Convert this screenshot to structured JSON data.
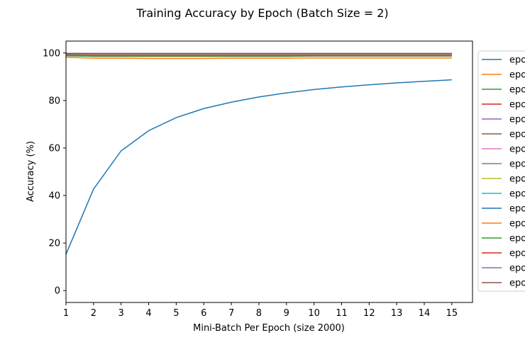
{
  "chart_data": {
    "type": "line",
    "title": "Training Accuracy by Epoch (Batch Size = 2)",
    "xlabel": "Mini-Batch Per Epoch (size 2000)",
    "ylabel": "Accuracy (%)",
    "xlim": [
      1,
      15.75
    ],
    "ylim": [
      -5,
      105
    ],
    "xticks": [
      1,
      2,
      3,
      4,
      5,
      6,
      7,
      8,
      9,
      10,
      11,
      12,
      13,
      14,
      15
    ],
    "yticks": [
      0,
      20,
      40,
      60,
      80,
      100
    ],
    "grid": false,
    "legend_position": "outside-right",
    "x": [
      1,
      2,
      3,
      4,
      5,
      6,
      7,
      8,
      9,
      10,
      11,
      12,
      13,
      14,
      15
    ],
    "series": [
      {
        "name": "epo",
        "color": "#1f77b4",
        "values": [
          15.3,
          42.7,
          58.8,
          67.3,
          72.8,
          76.6,
          79.3,
          81.5,
          83.2,
          84.6,
          85.7,
          86.6,
          87.4,
          88.1,
          88.7
        ]
      },
      {
        "name": "epo",
        "color": "#ff7f0e",
        "values": [
          98.2,
          97.8,
          97.8,
          97.7,
          97.7,
          97.7,
          97.8,
          97.8,
          97.8,
          97.9,
          97.9,
          97.9,
          97.9,
          97.9,
          97.9
        ]
      },
      {
        "name": "epo",
        "color": "#2ca02c",
        "values": [
          98.8,
          98.6,
          98.6,
          98.6,
          98.6,
          98.6,
          98.6,
          98.6,
          98.6,
          98.7,
          98.7,
          98.7,
          98.7,
          98.7,
          98.7
        ]
      },
      {
        "name": "epo",
        "color": "#d62728",
        "values": [
          99.0,
          98.9,
          98.9,
          98.9,
          98.9,
          98.9,
          98.9,
          98.9,
          98.9,
          98.9,
          98.9,
          98.9,
          98.9,
          98.9,
          98.9
        ]
      },
      {
        "name": "epo",
        "color": "#9467bd",
        "values": [
          99.2,
          99.1,
          99.1,
          99.1,
          99.1,
          99.1,
          99.1,
          99.1,
          99.1,
          99.1,
          99.1,
          99.1,
          99.1,
          99.1,
          99.1
        ]
      },
      {
        "name": "epo",
        "color": "#8c564b",
        "values": [
          99.3,
          99.2,
          99.2,
          99.2,
          99.2,
          99.2,
          99.2,
          99.2,
          99.2,
          99.2,
          99.2,
          99.2,
          99.2,
          99.2,
          99.2
        ]
      },
      {
        "name": "epo",
        "color": "#e377c2",
        "values": [
          99.4,
          99.3,
          99.3,
          99.3,
          99.3,
          99.3,
          99.3,
          99.3,
          99.3,
          99.3,
          99.3,
          99.3,
          99.3,
          99.3,
          99.3
        ]
      },
      {
        "name": "epo",
        "color": "#7f7f7f",
        "values": [
          99.5,
          99.4,
          99.4,
          99.4,
          99.4,
          99.4,
          99.4,
          99.4,
          99.4,
          99.4,
          99.4,
          99.4,
          99.4,
          99.4,
          99.4
        ]
      },
      {
        "name": "epo",
        "color": "#bcbd22",
        "values": [
          99.5,
          99.5,
          99.5,
          99.5,
          99.5,
          99.5,
          99.5,
          99.5,
          99.5,
          99.5,
          99.5,
          99.5,
          99.5,
          99.5,
          99.5
        ]
      },
      {
        "name": "epo",
        "color": "#17becf",
        "values": [
          99.6,
          99.5,
          99.5,
          99.5,
          99.5,
          99.5,
          99.5,
          99.5,
          99.5,
          99.5,
          99.5,
          99.5,
          99.5,
          99.5,
          99.5
        ]
      },
      {
        "name": "epo",
        "color": "#1f77b4",
        "values": [
          99.6,
          99.6,
          99.6,
          99.6,
          99.6,
          99.6,
          99.6,
          99.6,
          99.6,
          99.6,
          99.6,
          99.6,
          99.6,
          99.6,
          99.6
        ]
      },
      {
        "name": "epo",
        "color": "#ff7f0e",
        "values": [
          99.7,
          99.6,
          99.6,
          99.6,
          99.6,
          99.6,
          99.6,
          99.6,
          99.6,
          99.6,
          99.6,
          99.6,
          99.6,
          99.6,
          99.6
        ]
      },
      {
        "name": "epo",
        "color": "#2ca02c",
        "values": [
          99.7,
          99.7,
          99.7,
          99.7,
          99.7,
          99.7,
          99.7,
          99.7,
          99.7,
          99.7,
          99.7,
          99.7,
          99.7,
          99.7,
          99.7
        ]
      },
      {
        "name": "epo",
        "color": "#d62728",
        "values": [
          99.8,
          99.7,
          99.7,
          99.7,
          99.7,
          99.7,
          99.7,
          99.7,
          99.7,
          99.7,
          99.7,
          99.7,
          99.7,
          99.7,
          99.7
        ]
      },
      {
        "name": "epo",
        "color": "#9467bd",
        "values": [
          99.8,
          99.8,
          99.8,
          99.8,
          99.8,
          99.8,
          99.8,
          99.8,
          99.8,
          99.8,
          99.8,
          99.8,
          99.8,
          99.8,
          99.8
        ]
      },
      {
        "name": "epo",
        "color": "#8c564b",
        "values": [
          99.8,
          99.8,
          99.8,
          99.8,
          99.8,
          99.8,
          99.8,
          99.8,
          99.8,
          99.8,
          99.8,
          99.8,
          99.8,
          99.8,
          99.8
        ]
      }
    ]
  }
}
